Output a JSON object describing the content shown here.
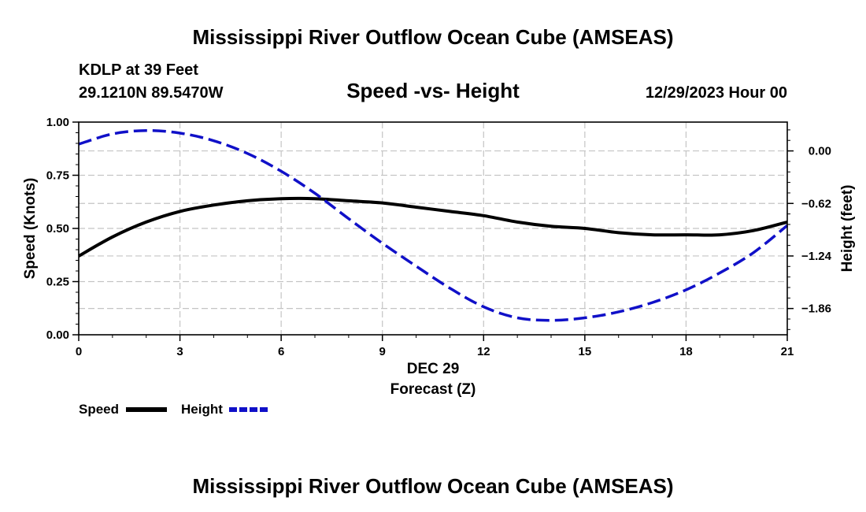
{
  "header": {
    "title": "Mississippi River Outflow Ocean Cube (AMSEAS)",
    "station_line": "KDLP at 39 Feet",
    "coords_line": "29.1210N  89.5470W",
    "date_line": "12/29/2023 Hour 00",
    "footer_title": "Mississippi River Outflow Ocean Cube (AMSEAS)"
  },
  "chart_data": {
    "type": "line",
    "title": "Speed -vs- Height",
    "xlabel_date": "DEC 29",
    "xlabel": "Forecast (Z)",
    "ylabel": "Speed (Knots)",
    "y2label": "Height (feet)",
    "xlim": [
      0,
      21
    ],
    "ylim": [
      0,
      1.0
    ],
    "y2lim": [
      -2.17,
      0.34
    ],
    "x_ticks": [
      "0",
      "3",
      "6",
      "9",
      "12",
      "15",
      "18",
      "21"
    ],
    "x_tick_values": [
      0,
      3,
      6,
      9,
      12,
      15,
      18,
      21
    ],
    "y_ticks": [
      "0.00",
      "0.25",
      "0.50",
      "0.75",
      "1.00"
    ],
    "y_tick_values": [
      0,
      0.25,
      0.5,
      0.75,
      1.0
    ],
    "y2_ticks": [
      "0.00",
      "−0.62",
      "−1.24",
      "−1.86"
    ],
    "y2_tick_values": [
      0,
      -0.62,
      -1.24,
      -1.86
    ],
    "grid": true,
    "legend_position": "bottom-left",
    "series": [
      {
        "name": "Speed",
        "axis": "left",
        "color": "#000000",
        "style": "solid",
        "x": [
          0,
          1,
          2,
          3,
          4,
          5,
          6,
          7,
          8,
          9,
          10,
          11,
          12,
          13,
          14,
          15,
          16,
          17,
          18,
          19,
          20,
          21
        ],
        "values": [
          0.37,
          0.46,
          0.53,
          0.58,
          0.61,
          0.63,
          0.64,
          0.64,
          0.63,
          0.62,
          0.6,
          0.58,
          0.56,
          0.53,
          0.51,
          0.5,
          0.48,
          0.47,
          0.47,
          0.47,
          0.49,
          0.53
        ]
      },
      {
        "name": "Height",
        "axis": "right",
        "color": "#1010c8",
        "style": "dashed",
        "x": [
          0,
          1,
          2,
          3,
          4,
          5,
          6,
          7,
          8,
          9,
          10,
          11,
          12,
          13,
          14,
          15,
          16,
          17,
          18,
          19,
          20,
          21
        ],
        "values": [
          0.08,
          0.2,
          0.24,
          0.21,
          0.12,
          -0.03,
          -0.24,
          -0.5,
          -0.8,
          -1.09,
          -1.36,
          -1.62,
          -1.84,
          -1.97,
          -2.0,
          -1.97,
          -1.9,
          -1.79,
          -1.64,
          -1.44,
          -1.2,
          -0.88
        ]
      }
    ]
  }
}
